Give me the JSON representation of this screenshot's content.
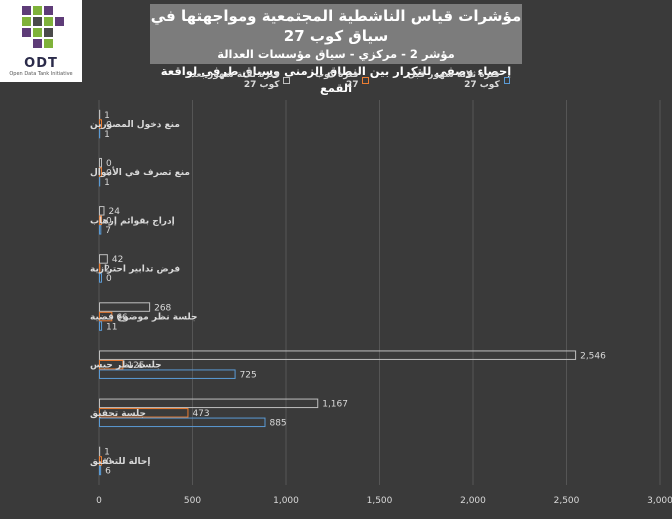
{
  "logo": {
    "text": "ODT",
    "subtext": "Open Data Tank Initiative"
  },
  "chart_data": {
    "type": "bar",
    "orientation": "horizontal",
    "title": "مؤشرات قياس الناشطية المجتمعية ومواجهتها في سياق كوب 27",
    "subtitles": [
      "مؤشر 2 - مركزي - سياق مؤسسات العدالة",
      "إحصاء وصفي للتكرار بين النطاق الزمني وسياق طرفي لواقعة القمع"
    ],
    "categories": [
      "منع دخول المصورين",
      "منع تصرف في الأموال",
      "إدراج بقوائم إرهاب",
      "فرض تدابير احترازية",
      "جلسة نظر موضوع قضية",
      "جلسة نظر حبس",
      "جلسة تحقيق",
      "إحالة للتحقيق"
    ],
    "series": [
      {
        "name": "فترة ثلاثة شهور بعد كوب 27",
        "color": "#bfbfbf",
        "values": [
          1,
          0,
          24,
          42,
          268,
          2546,
          1167,
          1
        ]
      },
      {
        "name": "فترة كوب 27",
        "color": "#ed7d31",
        "values": [
          0,
          0,
          0,
          2,
          66,
          125,
          473,
          0
        ]
      },
      {
        "name": "فترة ثلاثة شهور قبل كوب 27",
        "color": "#5b9bd5",
        "values": [
          1,
          1,
          7,
          0,
          11,
          725,
          885,
          6
        ]
      }
    ],
    "data_labels": [
      [
        "1",
        "0",
        "24",
        "42",
        "268",
        "2,546",
        "1,167",
        "1"
      ],
      [
        "0",
        "0",
        "0",
        "2",
        "66",
        "125",
        "473",
        "0"
      ],
      [
        "1",
        "1",
        "7",
        "0",
        "11",
        "725",
        "885",
        "6"
      ]
    ],
    "xlim": [
      0,
      3000
    ],
    "xticks": [
      0,
      500,
      1000,
      1500,
      2000,
      2500,
      3000
    ],
    "xtick_labels": [
      "0",
      "500",
      "1,000",
      "1,500",
      "2,000",
      "2,500",
      "3,000"
    ],
    "legend_position": "top",
    "grid": "vertical"
  }
}
